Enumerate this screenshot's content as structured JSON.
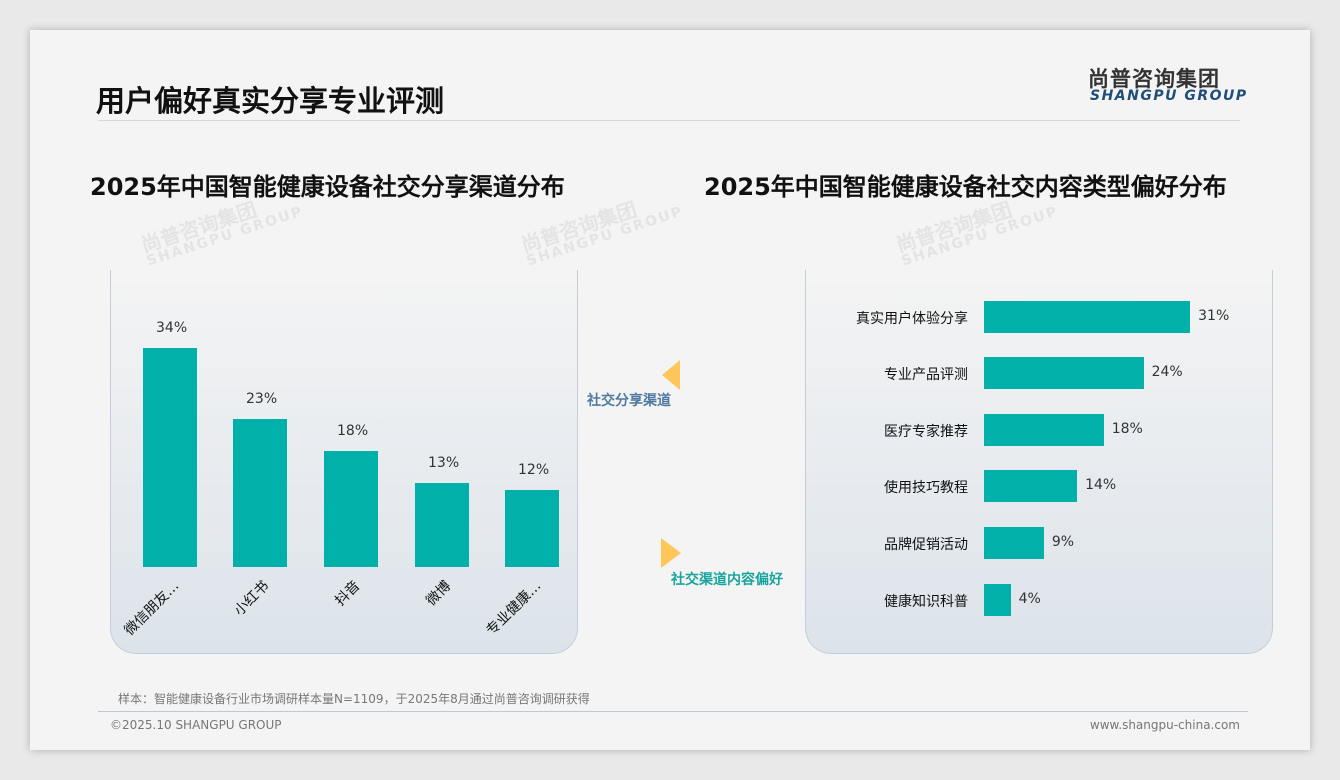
{
  "header": {
    "title": "用户偏好真实分享专业评测",
    "logo_cn": "尚普咨询集团",
    "logo_en": "SHANGPU GROUP"
  },
  "watermark": {
    "cn": "尚普咨询集团",
    "en": "SHANGPU GROUP"
  },
  "connector": {
    "label_top": "社交分享渠道",
    "label_bottom": "社交渠道内容偏好",
    "accent": "#ffc65a"
  },
  "chart_data": [
    {
      "type": "bar",
      "title": "2025年中国智能健康设备社交分享渠道分布",
      "categories": [
        "微信朋友…",
        "小红书",
        "抖音",
        "微博",
        "专业健康…"
      ],
      "values": [
        34,
        23,
        18,
        13,
        12
      ],
      "value_labels": [
        "34%",
        "23%",
        "18%",
        "13%",
        "12%"
      ],
      "unit": "%",
      "color": "#00b0a9"
    },
    {
      "type": "bar",
      "orientation": "horizontal",
      "title": "2025年中国智能健康设备社交内容类型偏好分布",
      "categories": [
        "真实用户体验分享",
        "专业产品评测",
        "医疗专家推荐",
        "使用技巧教程",
        "品牌促销活动",
        "健康知识科普"
      ],
      "values": [
        31,
        24,
        18,
        14,
        9,
        4
      ],
      "value_labels": [
        "31%",
        "24%",
        "18%",
        "14%",
        "9%",
        "4%"
      ],
      "unit": "%",
      "color": "#00b0a9"
    }
  ],
  "footer": {
    "note": "样本：智能健康设备行业市场调研样本量N=1109，于2025年8月通过尚普咨询调研获得",
    "copyright": "©2025.10 SHANGPU GROUP",
    "url": "www.shangpu-china.com"
  }
}
